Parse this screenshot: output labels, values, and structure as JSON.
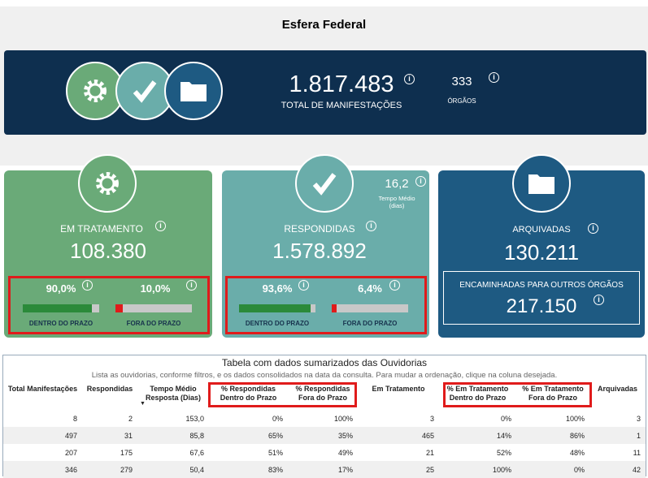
{
  "header": {
    "title": "Esfera Federal"
  },
  "banner": {
    "total": "1.817.483",
    "total_label": "TOTAL DE MANIFESTAÇÕES",
    "orgaos": "333",
    "orgaos_label": "ÓRGÃOS"
  },
  "em_tratamento": {
    "label": "EM TRATAMENTO",
    "value": "108.380",
    "dentro": {
      "value": 90.0,
      "label": "90,0%"
    },
    "fora": {
      "value": 10.0,
      "label": "10,0%"
    },
    "dentro_label": "DENTRO DO PRAZO",
    "fora_label": "FORA DO PRAZO"
  },
  "respondidas": {
    "label": "RESPONDIDAS",
    "value": "1.578.892",
    "tempo": "16,2",
    "tempo_label": "Tempo Médio (dias)",
    "dentro": {
      "value": 93.6,
      "label": "93,6%"
    },
    "fora": {
      "value": 6.4,
      "label": "6,4%"
    },
    "dentro_label": "DENTRO DO PRAZO",
    "fora_label": "FORA DO PRAZO"
  },
  "arquivadas": {
    "label": "ARQUIVADAS",
    "value": "130.211",
    "encaminhadas_label": "ENCAMINHADAS PARA OUTROS ÓRGÃOS",
    "encaminhadas": "217.150"
  },
  "table": {
    "title": "Tabela com dados sumarizados das Ouvidorias",
    "subtitle": "Lista as ouvidorias, conforme filtros, e os dados consolidados na data da consulta. Para mudar a ordenação, clique na coluna desejada.",
    "columns": [
      "Total Manifestações",
      "Respondidas",
      "Tempo Médio Resposta (Dias)",
      "% Respondidas Dentro do Prazo",
      "% Respondidas Fora do Prazo",
      "Em Tratamento",
      "% Em Tratamento Dentro do Prazo",
      "% Em Tratamento Fora do Prazo",
      "Arquivadas"
    ],
    "rows": [
      [
        "8",
        "2",
        "153,0",
        "0%",
        "100%",
        "3",
        "0%",
        "100%",
        "3"
      ],
      [
        "497",
        "31",
        "85,8",
        "65%",
        "35%",
        "465",
        "14%",
        "86%",
        "1"
      ],
      [
        "207",
        "175",
        "67,6",
        "51%",
        "49%",
        "21",
        "52%",
        "48%",
        "11"
      ],
      [
        "346",
        "279",
        "50,4",
        "83%",
        "17%",
        "25",
        "100%",
        "0%",
        "42"
      ]
    ]
  }
}
